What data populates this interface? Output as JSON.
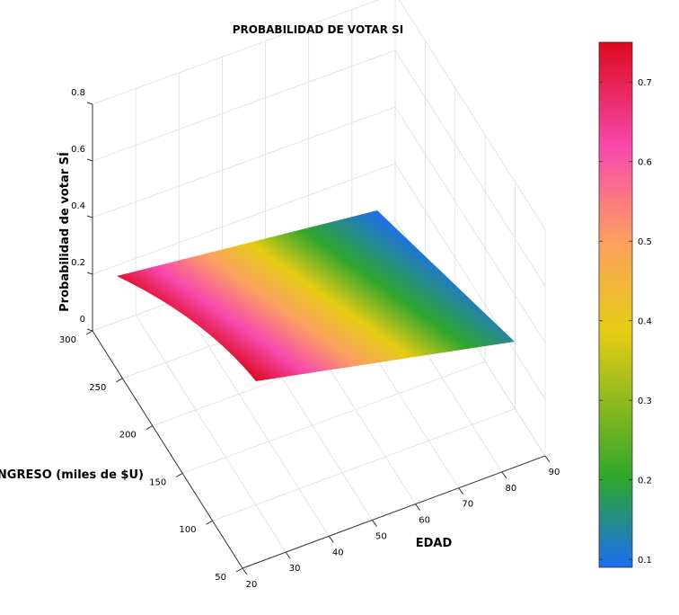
{
  "chart_data": {
    "type": "surface3d",
    "title": "PROBABILIDAD DE VOTAR SI",
    "xlabel": "EDAD",
    "ylabel": "INGRESO (miles de $U)",
    "zlabel": "Probabilidad de votar SÍ",
    "x_ticks": [
      "20",
      "30",
      "40",
      "50",
      "60",
      "70",
      "80",
      "90"
    ],
    "y_ticks": [
      "50",
      "100",
      "150",
      "200",
      "250",
      "300"
    ],
    "z_ticks": [
      "0",
      "0.2",
      "0.4",
      "0.6",
      "0.8"
    ],
    "xlim": [
      20,
      90
    ],
    "ylim": [
      50,
      300
    ],
    "zlim": [
      0,
      0.8
    ],
    "grid": true,
    "corner_values": [
      {
        "edad": 20,
        "ingreso": 50,
        "prob": 0.75
      },
      {
        "edad": 90,
        "ingreso": 50,
        "prob": 0.51
      },
      {
        "edad": 20,
        "ingreso": 300,
        "prob": 0.25
      },
      {
        "edad": 90,
        "ingreso": 300,
        "prob": 0.1
      }
    ],
    "colorbar": {
      "ticks": [
        "0.1",
        "0.2",
        "0.3",
        "0.4",
        "0.5",
        "0.6",
        "0.7"
      ],
      "range": [
        0.09,
        0.75
      ],
      "colormap": [
        "#1e6cf2",
        "#2fa62c",
        "#e6cc14",
        "#fba060",
        "#f849ad",
        "#dc0a1e"
      ]
    }
  }
}
